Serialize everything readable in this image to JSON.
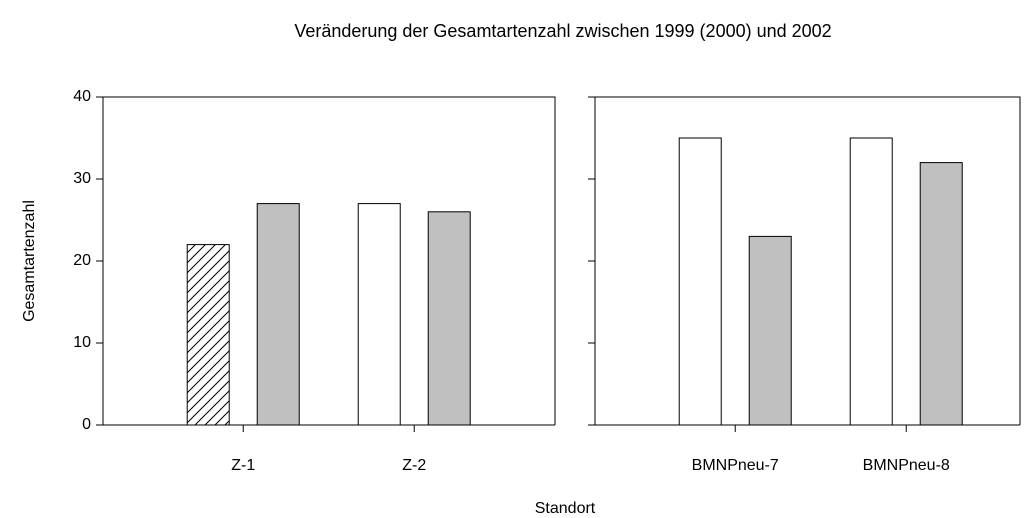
{
  "chart_data": [
    {
      "type": "bar",
      "title": "Veränderung der Gesamtartenzahl zwischen 1999 (2000) und 2002",
      "xlabel": "Standort",
      "ylabel": "Gesamtartenzahl",
      "categories": [
        "Z-1",
        "Z-2"
      ],
      "series": [
        {
          "color": "#ffffff",
          "values": [
            null,
            27
          ]
        },
        {
          "color": "#ffffff",
          "pattern": "hatch",
          "values": [
            22,
            null
          ]
        },
        {
          "color": "#c0c0c0",
          "values": [
            27,
            26
          ]
        }
      ],
      "ylim": [
        0,
        40
      ],
      "yticks": [
        0,
        10,
        20,
        30,
        40
      ],
      "ytick_labels": true
    },
    {
      "type": "bar",
      "categories": [
        "BMNPneu-7",
        "BMNPneu-8"
      ],
      "series": [
        {
          "color": "#ffffff",
          "values": [
            35,
            35
          ]
        },
        {
          "color": "#c0c0c0",
          "values": [
            23,
            32
          ]
        }
      ],
      "ylim": [
        0,
        40
      ],
      "yticks": [
        0,
        10,
        20,
        30,
        40
      ],
      "ytick_labels": false
    }
  ]
}
